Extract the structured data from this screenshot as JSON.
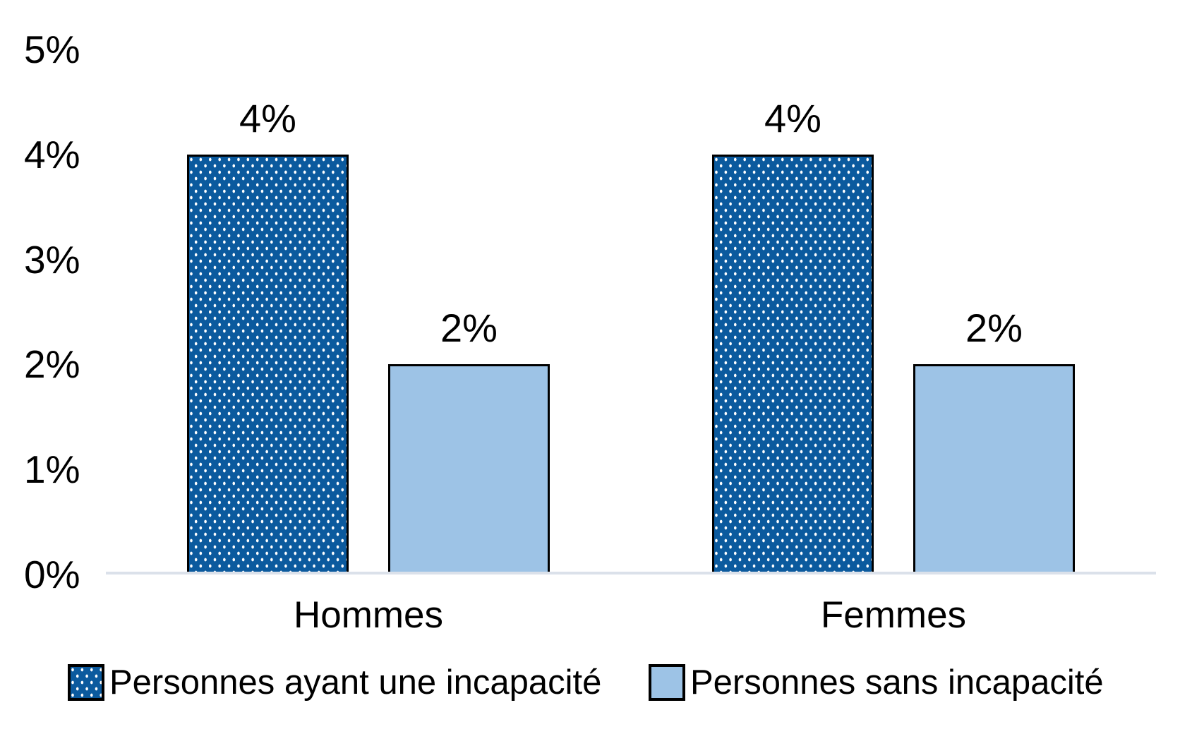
{
  "chart_data": {
    "type": "bar",
    "title": "",
    "categories": [
      "Hommes",
      "Femmes"
    ],
    "series": [
      {
        "name": "Personnes ayant une incapacité",
        "values": [
          4,
          4
        ],
        "data_labels": [
          "4%",
          "4%"
        ],
        "color": "#0B5A9E",
        "fill_pattern": "white-dots"
      },
      {
        "name": "Personnes sans incapacité",
        "values": [
          2,
          2
        ],
        "data_labels": [
          "2%",
          "2%"
        ],
        "color": "#9DC3E6",
        "fill_pattern": "solid"
      }
    ],
    "y_axis": {
      "tick_labels": [
        "0%",
        "1%",
        "2%",
        "3%",
        "4%",
        "5%"
      ],
      "min": 0,
      "max": 5,
      "grid": "off"
    },
    "legend_position": "bottom",
    "colors": {
      "bar_border": "#000000",
      "pattern_dot": "#FFFFFF",
      "axis_line": "#DBE1EA",
      "text": "#000000"
    }
  }
}
